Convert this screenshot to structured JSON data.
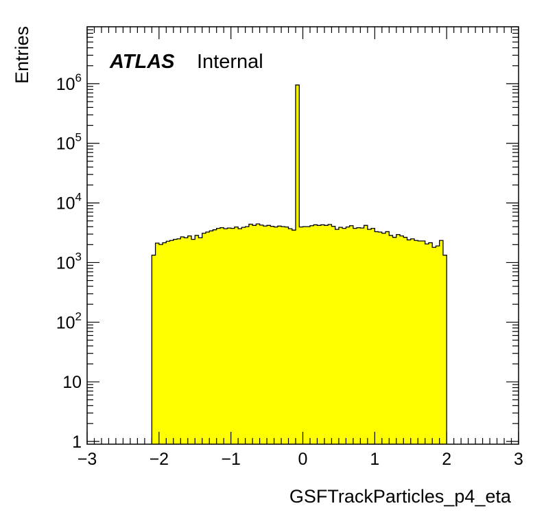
{
  "labels": {
    "experiment": "ATLAS",
    "status": "Internal"
  },
  "chart_data": {
    "type": "bar",
    "xlabel": "GSFTrackParticles_p4_eta",
    "ylabel": "Entries",
    "xlim": [
      -3,
      3
    ],
    "ylim": [
      0.9,
      9000000
    ],
    "y_scale": "log",
    "x_ticks": [
      {
        "v": -3,
        "label": "−3"
      },
      {
        "v": -2,
        "label": "−2"
      },
      {
        "v": -1,
        "label": "−1"
      },
      {
        "v": 0,
        "label": "0"
      },
      {
        "v": 1,
        "label": "1"
      },
      {
        "v": 2,
        "label": "2"
      },
      {
        "v": 3,
        "label": "3"
      }
    ],
    "y_ticks": [
      {
        "v": 1,
        "base": "1",
        "exp": ""
      },
      {
        "v": 10,
        "base": "10",
        "exp": ""
      },
      {
        "v": 100,
        "base": "10",
        "exp": "2"
      },
      {
        "v": 1000,
        "base": "10",
        "exp": "3"
      },
      {
        "v": 10000,
        "base": "10",
        "exp": "4"
      },
      {
        "v": 100000,
        "base": "10",
        "exp": "5"
      },
      {
        "v": 1000000,
        "base": "10",
        "exp": "6"
      }
    ],
    "bin_width": 0.05,
    "bin_start": -2.1,
    "fill_color": "#ffff00",
    "line_color": "#000000",
    "values": [
      1330,
      2120,
      2010,
      2150,
      2280,
      2350,
      2450,
      2500,
      2700,
      2600,
      2800,
      2450,
      2850,
      2600,
      3100,
      3250,
      3400,
      3550,
      3750,
      3850,
      3700,
      3800,
      3750,
      3950,
      3700,
      3900,
      4000,
      4400,
      4200,
      4450,
      4250,
      4100,
      4200,
      4050,
      3950,
      4100,
      4000,
      3950,
      3700,
      3500,
      950000,
      3950,
      4000,
      4000,
      4150,
      4300,
      4200,
      4300,
      4200,
      4350,
      4050,
      3600,
      3900,
      3750,
      3950,
      4150,
      3750,
      3850,
      3800,
      4200,
      3600,
      3750,
      3300,
      3250,
      3100,
      3300,
      2850,
      2650,
      2950,
      2800,
      2650,
      2400,
      2500,
      2350,
      2300,
      2300,
      2050,
      2150,
      1800,
      1900,
      2350,
      1330
    ]
  }
}
